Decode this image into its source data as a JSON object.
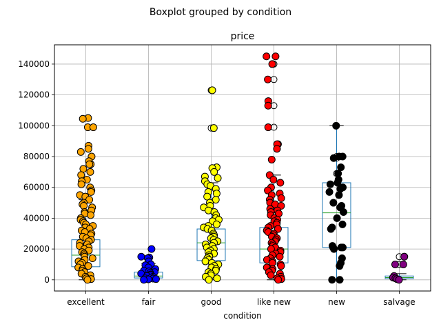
{
  "chart_data": {
    "type": "boxplot",
    "suptitle": "Boxplot grouped by condition",
    "title": "price",
    "xlabel": "condition",
    "ylabel": "",
    "categories": [
      "excellent",
      "fair",
      "good",
      "like new",
      "new",
      "salvage"
    ],
    "yticks": [
      0,
      20000,
      40000,
      60000,
      80000,
      100000,
      120000,
      140000
    ],
    "ytick_labels": [
      "0",
      "20000",
      "40000",
      "60000",
      "80000",
      "100000",
      "120000",
      "140000"
    ],
    "ylim": [
      -7250,
      152500
    ],
    "grid": true,
    "box_color": "#1f77b4",
    "median_color": "#2ca02c",
    "boxes": [
      {
        "category": "excellent",
        "q1": 8500,
        "median": 16000,
        "q3": 26000,
        "whisker_low": 0,
        "whisker_high": 52000
      },
      {
        "category": "fair",
        "q1": 1200,
        "median": 2500,
        "q3": 5000,
        "whisker_low": 0,
        "whisker_high": 10500
      },
      {
        "category": "good",
        "q1": 12500,
        "median": 24000,
        "q3": 33000,
        "whisker_low": 0,
        "whisker_high": 63000
      },
      {
        "category": "like new",
        "q1": 11000,
        "median": 20000,
        "q3": 34000,
        "whisker_low": 0,
        "whisker_high": 68000
      },
      {
        "category": "new",
        "q1": 21000,
        "median": 43500,
        "q3": 63000,
        "whisker_low": 0,
        "whisker_high": 100000
      },
      {
        "category": "salvage",
        "q1": 800,
        "median": 1500,
        "q3": 2500,
        "whisker_low": 0,
        "whisker_high": 4000
      }
    ],
    "points": [
      {
        "category": "excellent",
        "color": "#ffa500",
        "values": [
          105000,
          104500,
          99000,
          99000,
          87000,
          85000,
          83000,
          80000,
          77000,
          75000,
          75000,
          72000,
          70000,
          68000,
          65000,
          64000,
          62000,
          60000,
          58000,
          57000,
          55000,
          54000,
          52000,
          50000,
          49000,
          48000,
          47000,
          45000,
          44000,
          43000,
          42000,
          40000,
          39000,
          38000,
          37000,
          36000,
          35000,
          34000,
          33000,
          32000,
          31000,
          30000,
          29000,
          28000,
          27000,
          26000,
          25000,
          24000,
          23000,
          22000,
          21000,
          20000,
          19000,
          18000,
          17000,
          16000,
          15000,
          14000,
          13000,
          12000,
          11000,
          10000,
          9000,
          8000,
          7000,
          6000,
          5000,
          4000,
          3000,
          2000,
          1000,
          500,
          0
        ]
      },
      {
        "category": "fair",
        "color": "#0000ff",
        "values": [
          20000,
          15000,
          14500,
          14000,
          12000,
          10000,
          9500,
          8000,
          7000,
          6000,
          5500,
          5000,
          4500,
          4000,
          3500,
          3000,
          2500,
          2000,
          1500,
          1000,
          800,
          500,
          300,
          0
        ]
      },
      {
        "category": "good",
        "color": "#ffff00",
        "values": [
          123000,
          98500,
          73000,
          72500,
          70000,
          67000,
          66000,
          64000,
          62000,
          61000,
          59000,
          57000,
          56000,
          54000,
          52000,
          50000,
          48000,
          47000,
          45000,
          44000,
          42000,
          40000,
          39000,
          38000,
          36000,
          35000,
          34000,
          33000,
          32000,
          30000,
          29000,
          28000,
          27000,
          26000,
          25000,
          24000,
          23000,
          22000,
          21000,
          20000,
          19000,
          18000,
          17000,
          16000,
          15000,
          14000,
          13000,
          12000,
          11000,
          10000,
          9000,
          8000,
          7000,
          6000,
          5000,
          4000,
          3000,
          2000,
          1000,
          0
        ]
      },
      {
        "category": "like new",
        "color": "#ff0000",
        "values": [
          145000,
          145000,
          140000,
          130000,
          116000,
          113000,
          99000,
          88000,
          88000,
          85000,
          78000,
          68000,
          65000,
          63000,
          60000,
          58000,
          56000,
          55000,
          53000,
          52000,
          50000,
          49000,
          48000,
          46000,
          45000,
          44000,
          43000,
          42000,
          40000,
          39000,
          38000,
          37000,
          36000,
          35000,
          34000,
          33000,
          32000,
          31000,
          30000,
          29000,
          28000,
          27000,
          26000,
          25000,
          24000,
          23000,
          22000,
          21000,
          20000,
          19000,
          18000,
          17000,
          16000,
          15000,
          14000,
          13000,
          12000,
          11000,
          10000,
          9000,
          8000,
          7000,
          6000,
          5000,
          4000,
          3000,
          2000,
          1000,
          500,
          0
        ]
      },
      {
        "category": "new",
        "color": "#000000",
        "values": [
          100000,
          80000,
          80000,
          79000,
          73000,
          69000,
          65000,
          63000,
          62000,
          60000,
          59000,
          57000,
          55000,
          50000,
          48000,
          47000,
          44000,
          40000,
          36000,
          34000,
          33000,
          22000,
          21000,
          21000,
          21000,
          20000,
          14000,
          11000,
          9000,
          0,
          0
        ]
      },
      {
        "category": "salvage",
        "color": "#800080",
        "values": [
          15000,
          15000,
          10000,
          10000,
          2500,
          1500,
          1000,
          500,
          0
        ]
      }
    ],
    "hollow_outliers": [
      {
        "category": "good",
        "values": [
          123000,
          98500
        ]
      },
      {
        "category": "like new",
        "values": [
          140000,
          130000,
          113000,
          99000
        ]
      },
      {
        "category": "new",
        "values": [
          80000,
          79000,
          69000
        ]
      },
      {
        "category": "salvage",
        "values": [
          15000,
          10000
        ]
      }
    ]
  }
}
